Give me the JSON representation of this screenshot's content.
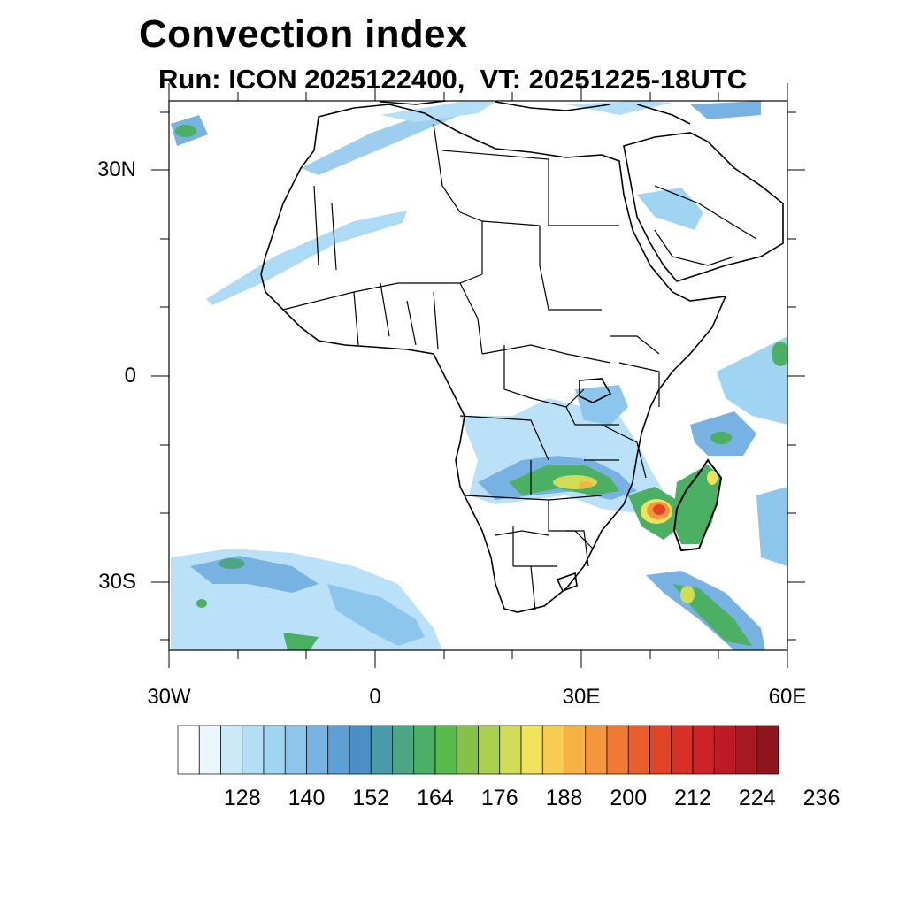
{
  "map": {
    "title": "Convection index",
    "subtitle": "Run: ICON 2025122400,  VT: 20251225-18UTC",
    "latitude_labels": [
      "30N",
      "0",
      "30S"
    ],
    "longitude_labels": [
      "30W",
      "0",
      "30E",
      "60E"
    ],
    "extent": {
      "lon_min": -30,
      "lon_max": 60,
      "lat_min": -40,
      "lat_max": 40
    }
  },
  "colorbar": {
    "tick_labels": [
      "128",
      "140",
      "152",
      "164",
      "176",
      "188",
      "200",
      "212",
      "224",
      "236"
    ],
    "colors": [
      "#ffffff",
      "#eaf6fc",
      "#cce9f8",
      "#b3def6",
      "#9fd5f3",
      "#8cc6ec",
      "#78b2e2",
      "#5e9fd6",
      "#4c8fc6",
      "#4a9aa8",
      "#4ca583",
      "#4bb063",
      "#58ba4a",
      "#85c24a",
      "#abcf4f",
      "#d0dc55",
      "#f0e25a",
      "#f8cc50",
      "#f7b246",
      "#f5953d",
      "#f07a33",
      "#ea5e2c",
      "#e24428",
      "#d83027",
      "#cc2228",
      "#bc1a26",
      "#a81822",
      "#8e151d"
    ]
  }
}
